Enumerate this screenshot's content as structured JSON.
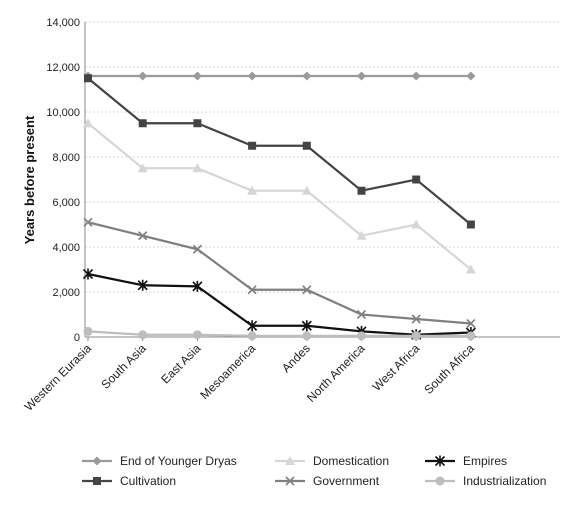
{
  "chart_data": {
    "type": "line",
    "title": "",
    "xlabel": "",
    "ylabel": "Years before present",
    "ylim": [
      0,
      14000
    ],
    "yticks": [
      0,
      2000,
      4000,
      6000,
      8000,
      10000,
      12000,
      14000
    ],
    "ytick_labels": [
      "0",
      "2,000",
      "4,000",
      "6,000",
      "8,000",
      "10,000",
      "12,000",
      "14,000"
    ],
    "grid": "horizontal dashed",
    "legend_position": "bottom",
    "categories": [
      "Western Eurasia",
      "South Asia",
      "East Asia",
      "Mesoamerica",
      "Andes",
      "North America",
      "West Africa",
      "South Africa"
    ],
    "series": [
      {
        "name": "End of Younger Dryas",
        "color": "#9a9a9a",
        "marker": "diamond",
        "values": [
          11600,
          11600,
          11600,
          11600,
          11600,
          11600,
          11600,
          11600
        ]
      },
      {
        "name": "Cultivation",
        "color": "#444444",
        "marker": "square",
        "values": [
          11500,
          9500,
          9500,
          8500,
          8500,
          6500,
          7000,
          5000
        ]
      },
      {
        "name": "Domestication",
        "color": "#d6d6d6",
        "marker": "triangle",
        "values": [
          9500,
          7500,
          7500,
          6500,
          6500,
          4500,
          5000,
          3000
        ]
      },
      {
        "name": "Government",
        "color": "#808080",
        "marker": "x",
        "values": [
          5100,
          4500,
          3900,
          2100,
          2100,
          1000,
          800,
          600
        ]
      },
      {
        "name": "Empires",
        "color": "#111111",
        "marker": "star",
        "values": [
          2800,
          2300,
          2250,
          500,
          500,
          250,
          100,
          200
        ]
      },
      {
        "name": "Industrialization",
        "color": "#bdbdbd",
        "marker": "circle",
        "values": [
          250,
          100,
          100,
          50,
          50,
          50,
          50,
          50
        ]
      }
    ]
  }
}
